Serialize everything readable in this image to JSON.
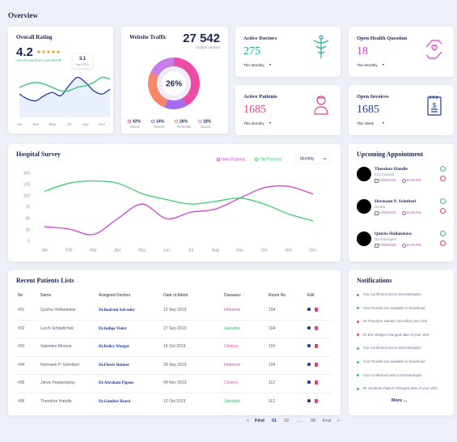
{
  "header": {
    "title": "Overview"
  },
  "rating_card": {
    "title": "Overall Rating",
    "value": 4.2,
    "change": "+0.5 Points from Last Month",
    "tooltip": {
      "value": 3.1,
      "date": "Sep 2019"
    },
    "chart": {
      "type": "line",
      "categories": [
        "Jan",
        null,
        "Mar",
        null,
        "May",
        null,
        "Jul",
        null,
        "Sep",
        null,
        "Nov",
        null
      ],
      "ylim": [
        1,
        4.5
      ],
      "series": [
        {
          "color": "#1d3f9a",
          "values": [
            2.4,
            2.1,
            2.0,
            2.3,
            2.5,
            2.3,
            2.9,
            3.4,
            3.1,
            2.6,
            2.4,
            2.7
          ]
        },
        {
          "color": "#33c27f",
          "values": [
            2.8,
            3.0,
            3.1,
            3.0,
            2.8,
            2.6,
            2.6,
            2.8,
            2.9,
            3.1,
            3.4,
            3.3
          ]
        }
      ]
    }
  },
  "traffic_card": {
    "title": "Website Traffic",
    "total": "27 542",
    "subtitle": "Unique Visitors",
    "chart": {
      "type": "pie",
      "center_label": "26%",
      "categories": [
        "Direct",
        "Search",
        "Referrals",
        "Social"
      ],
      "values": [
        42,
        14,
        26,
        18
      ],
      "value_labels": [
        "42%",
        "14%",
        "26%",
        "18%"
      ],
      "colors": [
        "#ec4ba8",
        "#a56bf0",
        "#f7866a",
        "#c77ee8"
      ]
    }
  },
  "stat_cards": [
    {
      "title": "Active Doctors",
      "value": 275,
      "period": "This Monthly",
      "color": "#1fa9a0"
    },
    {
      "title": "Open Health Question",
      "value": 18,
      "period": "This Monthly",
      "color": "#d63fd0"
    },
    {
      "title": "Active Patients",
      "value": 1685,
      "period": "This Monthly",
      "color": "#e0418f"
    },
    {
      "title": "Open Invoices",
      "value": 1685,
      "period": "This Week",
      "color": "#1b3a9c"
    }
  ],
  "survey": {
    "title": "Hospital Survey",
    "period": "Monthly",
    "chart": {
      "type": "line",
      "categories": [
        "Jan",
        "Feb",
        "Mar",
        "Apr",
        "May",
        "Jun",
        "Jul",
        "Aug",
        "Sep",
        "Oct",
        "Nov",
        "Dec"
      ],
      "ylim": [
        0,
        150
      ],
      "yticks": [
        0,
        25,
        50,
        75,
        100,
        125,
        150
      ],
      "series": [
        {
          "name": "New Patients",
          "color": "#d63fd0",
          "values": [
            32,
            27,
            15,
            50,
            82,
            50,
            64,
            71,
            95,
            118,
            121,
            104
          ]
        },
        {
          "name": "Old Patients",
          "color": "#3ccf6e",
          "values": [
            110,
            128,
            133,
            128,
            105,
            92,
            82,
            88,
            95,
            82,
            60,
            45
          ]
        }
      ]
    }
  },
  "appointments": {
    "title": "Upcoming Appointment",
    "items": [
      {
        "name": "Theodore Handle",
        "role": "Psychologist",
        "date": "14/09/2019",
        "time": "10:45 PM"
      },
      {
        "name": "Hermann P. Schnitzel",
        "role": "Dentist",
        "date": "14/09/2019",
        "time": "10:45 PM"
      },
      {
        "name": "Quiche Hollandaise",
        "role": "Dermatologist",
        "date": "07/08/2019",
        "time": "10:45 PM"
      }
    ]
  },
  "patients": {
    "title": "Recent Patients Lists",
    "columns": [
      "No",
      "Name",
      "Assigned Doctors",
      "Date of Admit",
      "Diseases",
      "Room No",
      "Edit"
    ],
    "rows": [
      {
        "no": "#01",
        "name": "Quiche Hollandaise",
        "doctor": "Dr.Bodrum Salvador",
        "date": "12 Sep 2019",
        "disease": "Influence",
        "disease_color": "#d63fd0",
        "room": 104
      },
      {
        "no": "#02",
        "name": "Lurch Schpellchek",
        "doctor": "Dr.Indigo Violet",
        "date": "27 Sep 2019",
        "disease": "Jaundice",
        "disease_color": "#2fb86a",
        "room": 104
      },
      {
        "no": "#03",
        "name": "Valentino Morose",
        "doctor": "Dr.Bailey Wonger",
        "date": "16 Oct 2019",
        "disease": "Cholera",
        "disease_color": "#ec4ba8",
        "room": 104
      },
      {
        "no": "#04",
        "name": "Hermann P. Schnitzel",
        "doctor": "Dr.Fletch Skinner",
        "date": "29 Sep 2019",
        "disease": "Influence",
        "disease_color": "#d63fd0",
        "room": 104
      },
      {
        "no": "#05",
        "name": "Jarvis Pepperspray",
        "doctor": "Dr.Abraham Pigeon",
        "date": "04 Nov 2019",
        "disease": "Cholera",
        "disease_color": "#ec4ba8",
        "room": 112
      },
      {
        "no": "#06",
        "name": "Theodore Handle",
        "doctor": "Dr.Gunther Beard",
        "date": "12 Oct 2019",
        "disease": "Jaundice",
        "disease_color": "#2fb86a",
        "room": 112
      }
    ]
  },
  "pagination": [
    "«",
    "First",
    "01",
    "02",
    "....",
    "08",
    "End",
    "»"
  ],
  "notifications": {
    "title": "Notifications",
    "more": "More ...",
    "items": [
      {
        "text": "You Confirmed visit to Dermatologist",
        "color": "#2ec27e"
      },
      {
        "text": "Your Results are available to Download",
        "color": "#2ec27e"
      },
      {
        "text": "Dr.Theodore Handle Cancelled your Visit",
        "color": "#ec3d6b"
      },
      {
        "text": "Dr.Eric Widget Changed date of your Visit",
        "color": "#ec3d6b"
      },
      {
        "text": "You Confirmed visit to Dermatologist",
        "color": "#2ec27e"
      },
      {
        "text": "Your Results are available to Download",
        "color": "#2ec27e"
      },
      {
        "text": "Your Confirmed visit to Dermatologist",
        "color": "#2ec27e"
      },
      {
        "text": "Dr.Abraham Pigeon Changed date of your Visit",
        "color": "#2ec27e"
      }
    ]
  }
}
